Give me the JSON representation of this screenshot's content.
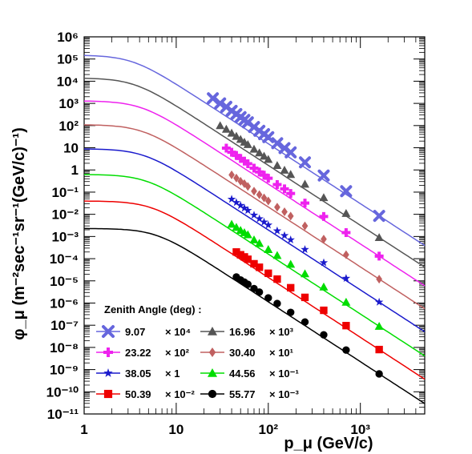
{
  "chart_data": {
    "type": "scatter",
    "xlabel": "p_μ (GeV/c)",
    "ylabel": "φ_μ (m⁻²sec⁻¹sr⁻¹(GeV/c)⁻¹)",
    "xlim": [
      1,
      5000
    ],
    "ylim": [
      1e-11,
      1000000.0
    ],
    "xscale": "log",
    "yscale": "log",
    "x_ticks": [
      1,
      10,
      100,
      1000
    ],
    "y_ticks": [
      1e-11,
      1e-10,
      1e-09,
      1e-08,
      1e-07,
      1e-06,
      1e-05,
      0.0001,
      0.001,
      0.01,
      0.1,
      1,
      10,
      100,
      1000,
      10000.0,
      100000.0,
      1000000.0
    ],
    "legend_title": "Zenith Angle (deg) :",
    "legend_position": "bottom-left",
    "x_points": [
      25,
      30,
      35,
      40,
      45,
      50,
      55,
      60,
      70,
      80,
      90,
      100,
      125,
      150,
      175,
      250,
      400,
      700,
      1600
    ],
    "series": [
      {
        "name": "9.07",
        "scale": "× 10^4",
        "color": "#6666dd",
        "marker": "x-cross",
        "x_points": [
          25,
          30,
          35,
          40,
          45,
          50,
          55,
          60,
          70,
          80,
          90,
          100,
          125,
          150,
          175,
          250,
          400,
          700,
          1600
        ],
        "y_points": [
          1700.0,
          1000.0,
          700.0,
          460.0,
          330.0,
          240.0,
          180.0,
          140.0,
          86.0,
          58.0,
          41.0,
          30.0,
          16.0,
          9.6,
          6.2,
          2.2,
          0.56,
          0.11,
          0.0085
        ],
        "curve": {
          "a": 150000.0
        }
      },
      {
        "name": "16.96",
        "scale": "× 10^3",
        "color": "#555555",
        "marker": "triangle",
        "x_points": [
          30,
          35,
          40,
          45,
          50,
          55,
          60,
          70,
          80,
          90,
          100,
          125,
          150,
          175,
          250,
          400,
          700,
          1600
        ],
        "y_points": [
          100.0,
          69.0,
          46.0,
          33.0,
          24.0,
          18.0,
          14.0,
          8.7,
          5.9,
          4.2,
          3.0,
          1.6,
          0.98,
          0.63,
          0.23,
          0.057,
          0.011,
          0.0009
        ],
        "curve": {
          "a": 14000.0
        }
      },
      {
        "name": "23.22",
        "scale": "× 10^2",
        "color": "#ee22ee",
        "marker": "plus",
        "x_points": [
          35,
          40,
          45,
          50,
          55,
          60,
          70,
          80,
          90,
          100,
          125,
          150,
          175,
          250,
          400,
          700,
          1600
        ],
        "y_points": [
          9.6,
          6.3,
          4.5,
          3.3,
          2.5,
          1.9,
          1.2,
          0.81,
          0.58,
          0.42,
          0.22,
          0.14,
          0.087,
          0.032,
          0.008,
          0.0015,
          0.00013
        ],
        "curve": {
          "a": 1300.0
        }
      },
      {
        "name": "30.40",
        "scale": "× 10^1",
        "color": "#c06060",
        "marker": "diamond",
        "x_points": [
          40,
          45,
          50,
          55,
          60,
          70,
          80,
          90,
          100,
          125,
          150,
          175,
          250,
          400,
          700,
          1600
        ],
        "y_points": [
          0.6,
          0.43,
          0.31,
          0.24,
          0.18,
          0.11,
          0.077,
          0.055,
          0.04,
          0.021,
          0.013,
          0.0083,
          0.003,
          0.00076,
          0.00015,
          1.2e-05
        ],
        "curve": {
          "a": 110.0
        }
      },
      {
        "name": "38.05",
        "scale": "× 1",
        "color": "#1a1acc",
        "marker": "star",
        "x_points": [
          40,
          45,
          50,
          55,
          60,
          70,
          80,
          90,
          100,
          125,
          150,
          175,
          250,
          400,
          700,
          1600
        ],
        "y_points": [
          0.048,
          0.034,
          0.025,
          0.019,
          0.015,
          0.0092,
          0.0063,
          0.0045,
          0.0033,
          0.0018,
          0.0011,
          0.00071,
          0.00026,
          6.6e-05,
          1.3e-05,
          1.1e-06
        ],
        "curve": {
          "a": 9.0
        }
      },
      {
        "name": "44.56",
        "scale": "× 10^-1",
        "color": "#00dd00",
        "marker": "triangle",
        "x_points": [
          40,
          45,
          50,
          55,
          60,
          70,
          80,
          100,
          125,
          175,
          250,
          400,
          700,
          1600
        ],
        "y_points": [
          0.0036,
          0.0026,
          0.0019,
          0.0015,
          0.0012,
          0.00071,
          0.00049,
          0.00026,
          0.00014,
          5.6e-05,
          2.1e-05,
          5.3e-06,
          1.1e-06,
          9e-08
        ],
        "curve": {
          "a": 0.63
        }
      },
      {
        "name": "50.39",
        "scale": "× 10^-2",
        "color": "#ee0000",
        "marker": "square",
        "x_points": [
          45,
          50,
          55,
          60,
          70,
          80,
          100,
          125,
          175,
          250,
          400,
          700,
          1600
        ],
        "y_points": [
          0.0002,
          0.00015,
          0.00012,
          9.4e-05,
          5.9e-05,
          4.1e-05,
          2.2e-05,
          1.2e-05,
          4.9e-06,
          1.8e-06,
          4.7e-07,
          9.6e-08,
          8e-09
        ],
        "curve": {
          "a": 0.04
        }
      },
      {
        "name": "55.77",
        "scale": "× 10^-3",
        "color": "#000000",
        "marker": "circle",
        "x_points": [
          45,
          50,
          55,
          60,
          70,
          80,
          100,
          125,
          175,
          250,
          400,
          700,
          1600
        ],
        "y_points": [
          1.5e-05,
          1.1e-05,
          8.8e-06,
          7e-06,
          4.5e-06,
          3.1e-06,
          1.7e-06,
          9.5e-07,
          3.8e-07,
          1.4e-07,
          3.7e-08,
          7.6e-09,
          6.4e-10
        ],
        "curve": {
          "a": 0.0023
        }
      }
    ]
  },
  "labels": {
    "y_ticks": [
      "10⁻¹¹",
      "10⁻¹⁰",
      "10⁻⁹",
      "10⁻⁸",
      "10⁻⁷",
      "10⁻⁶",
      "10⁻⁵",
      "10⁻⁴",
      "10⁻³",
      "10⁻²",
      "10⁻¹",
      "1",
      "10",
      "10²",
      "10³",
      "10⁴",
      "10⁵",
      "10⁶"
    ],
    "x_ticks": [
      "1",
      "10",
      "10²",
      "10³"
    ],
    "legend_items": [
      {
        "name": "9.07",
        "scale": "× 10⁴"
      },
      {
        "name": "16.96",
        "scale": "× 10³"
      },
      {
        "name": "23.22",
        "scale": "× 10²"
      },
      {
        "name": "30.40",
        "scale": "× 10¹"
      },
      {
        "name": "38.05",
        "scale": "× 1"
      },
      {
        "name": "44.56",
        "scale": "× 10⁻¹"
      },
      {
        "name": "50.39",
        "scale": "× 10⁻²"
      },
      {
        "name": "55.77",
        "scale": "× 10⁻³"
      }
    ]
  }
}
